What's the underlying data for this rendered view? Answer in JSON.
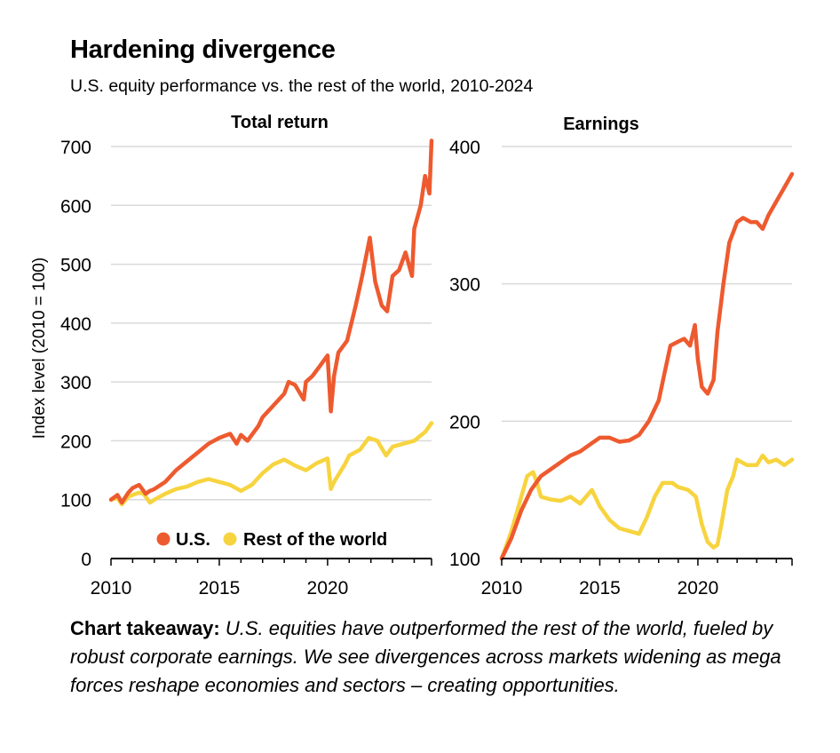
{
  "header": {
    "title": "Hardening divergence",
    "subtitle": "U.S. equity performance vs. the rest of the world, 2010-2024"
  },
  "colors": {
    "us": "#ee5a2f",
    "row": "#f7d43f",
    "grid": "#d9d9d9",
    "axis": "#000000"
  },
  "legend": {
    "us": "U.S.",
    "row": "Rest of the world"
  },
  "takeaway": {
    "lead": "Chart takeaway:",
    "body": " U.S. equities have outperformed the rest of the world, fueled by robust corporate earnings. We see divergences across markets widening as mega forces reshape economies and sectors – creating opportunities."
  },
  "chart_data": [
    {
      "type": "line",
      "title": "Total return",
      "ylabel": "Index level (2010 = 100)",
      "xlabel": "",
      "xlim": [
        2010,
        2024.8
      ],
      "ylim": [
        0,
        700
      ],
      "yticks": [
        0,
        100,
        200,
        300,
        400,
        500,
        600,
        700
      ],
      "xticks": [
        2010,
        2015,
        2020
      ],
      "grid": true,
      "legend_position": "bottom-right",
      "series": [
        {
          "name": "U.S.",
          "x": [
            2010,
            2010.3,
            2010.5,
            2010.8,
            2011,
            2011.3,
            2011.6,
            2011.8,
            2012,
            2012.5,
            2013,
            2013.5,
            2014,
            2014.5,
            2015,
            2015.5,
            2015.8,
            2016,
            2016.3,
            2016.8,
            2017,
            2017.5,
            2018,
            2018.2,
            2018.5,
            2018.9,
            2019,
            2019.3,
            2019.6,
            2020,
            2020.15,
            2020.2,
            2020.3,
            2020.5,
            2020.9,
            2021.3,
            2021.6,
            2021.95,
            2022.2,
            2022.5,
            2022.75,
            2023,
            2023.3,
            2023.6,
            2023.9,
            2024,
            2024.3,
            2024.5,
            2024.7,
            2024.8
          ],
          "values": [
            100,
            108,
            95,
            112,
            120,
            125,
            110,
            115,
            118,
            130,
            150,
            165,
            180,
            195,
            205,
            212,
            195,
            210,
            200,
            225,
            240,
            260,
            280,
            300,
            295,
            270,
            300,
            310,
            325,
            345,
            250,
            270,
            310,
            350,
            370,
            430,
            480,
            545,
            470,
            430,
            420,
            480,
            490,
            520,
            480,
            560,
            600,
            650,
            620,
            710
          ]
        },
        {
          "name": "Rest of the world",
          "x": [
            2010,
            2010.3,
            2010.5,
            2010.8,
            2011,
            2011.3,
            2011.5,
            2011.8,
            2012,
            2012.5,
            2013,
            2013.5,
            2014,
            2014.5,
            2015,
            2015.5,
            2016,
            2016.5,
            2017,
            2017.5,
            2018,
            2018.5,
            2019,
            2019.5,
            2020,
            2020.15,
            2020.3,
            2020.8,
            2021,
            2021.5,
            2021.9,
            2022.3,
            2022.7,
            2023,
            2023.5,
            2024,
            2024.5,
            2024.8
          ],
          "values": [
            100,
            103,
            92,
            105,
            108,
            112,
            110,
            95,
            100,
            110,
            118,
            122,
            130,
            135,
            130,
            125,
            115,
            125,
            145,
            160,
            168,
            158,
            150,
            162,
            170,
            118,
            130,
            160,
            175,
            185,
            205,
            200,
            175,
            190,
            195,
            200,
            215,
            230
          ]
        }
      ]
    },
    {
      "type": "line",
      "title": "Earnings",
      "ylabel": "",
      "xlabel": "",
      "xlim": [
        2010,
        2024.8
      ],
      "ylim": [
        100,
        400
      ],
      "yticks": [
        100,
        200,
        300,
        400
      ],
      "xticks": [
        2010,
        2015,
        2020
      ],
      "grid": true,
      "series": [
        {
          "name": "U.S.",
          "x": [
            2010,
            2010.5,
            2011,
            2011.5,
            2012,
            2012.5,
            2013,
            2013.5,
            2014,
            2014.5,
            2015,
            2015.5,
            2016,
            2016.5,
            2017,
            2017.5,
            2018,
            2018.3,
            2018.6,
            2019,
            2019.3,
            2019.6,
            2019.85,
            2020,
            2020.2,
            2020.5,
            2020.8,
            2021,
            2021.3,
            2021.6,
            2022,
            2022.3,
            2022.7,
            2023,
            2023.3,
            2023.6,
            2024,
            2024.4,
            2024.8
          ],
          "values": [
            100,
            115,
            135,
            150,
            160,
            165,
            170,
            175,
            178,
            183,
            188,
            188,
            185,
            186,
            190,
            200,
            215,
            235,
            255,
            258,
            260,
            255,
            270,
            245,
            225,
            220,
            230,
            265,
            300,
            330,
            345,
            348,
            345,
            345,
            340,
            350,
            360,
            370,
            380
          ]
        },
        {
          "name": "Rest of the world",
          "x": [
            2010,
            2010.5,
            2011,
            2011.3,
            2011.6,
            2011.8,
            2012,
            2012.5,
            2013,
            2013.5,
            2014,
            2014.3,
            2014.6,
            2015,
            2015.5,
            2016,
            2016.5,
            2017,
            2017.4,
            2017.8,
            2018.2,
            2018.7,
            2019,
            2019.5,
            2019.9,
            2020.2,
            2020.5,
            2020.8,
            2021,
            2021.2,
            2021.5,
            2021.8,
            2022,
            2022.5,
            2023,
            2023.3,
            2023.6,
            2024,
            2024.4,
            2024.8
          ],
          "values": [
            100,
            120,
            145,
            160,
            163,
            155,
            145,
            143,
            142,
            145,
            140,
            145,
            150,
            138,
            128,
            122,
            120,
            118,
            130,
            145,
            155,
            155,
            152,
            150,
            145,
            125,
            112,
            108,
            110,
            125,
            150,
            160,
            172,
            168,
            168,
            175,
            170,
            172,
            168,
            172
          ]
        }
      ]
    }
  ]
}
